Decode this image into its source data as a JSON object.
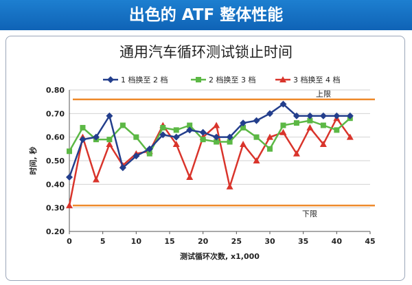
{
  "header": {
    "title": "出色的 ATF 整体性能"
  },
  "colors": {
    "banner": "#1467bf",
    "series1": "#233e8c",
    "series2": "#5cb845",
    "series3": "#d9342b",
    "limit": "#ee8a2b"
  },
  "chart_data": {
    "type": "line",
    "title": "通用汽车循环测试锁止时间",
    "xlabel": "测试循环次数, x1,000",
    "ylabel": "时间, 秒",
    "xlim": [
      0,
      45
    ],
    "ylim": [
      0.2,
      0.8
    ],
    "xticks": [
      "0",
      "5",
      "10",
      "15",
      "20",
      "25",
      "30",
      "35",
      "40",
      "45"
    ],
    "yticks": [
      "0.20",
      "0.30",
      "0.40",
      "0.50",
      "0.60",
      "0.70",
      "0.80"
    ],
    "grid": "horizontal",
    "legend_position": "top",
    "series": [
      {
        "name": "1 档换至 2 档",
        "marker": "diamond",
        "x": [
          0,
          2,
          4,
          6,
          8,
          10,
          12,
          14,
          16,
          18,
          20,
          22,
          24,
          26,
          28,
          30,
          32,
          34,
          36,
          38,
          40,
          42
        ],
        "y": [
          0.43,
          0.59,
          0.6,
          0.69,
          0.47,
          0.52,
          0.55,
          0.61,
          0.6,
          0.63,
          0.62,
          0.6,
          0.6,
          0.66,
          0.67,
          0.7,
          0.74,
          0.69,
          0.69,
          0.69,
          0.69,
          0.69
        ]
      },
      {
        "name": "2 档换至 3 档",
        "marker": "square",
        "x": [
          0,
          2,
          4,
          6,
          8,
          10,
          12,
          14,
          16,
          18,
          20,
          22,
          24,
          26,
          28,
          30,
          32,
          34,
          36,
          38,
          40,
          42
        ],
        "y": [
          0.54,
          0.64,
          0.59,
          0.59,
          0.65,
          0.6,
          0.53,
          0.64,
          0.63,
          0.65,
          0.59,
          0.58,
          0.58,
          0.64,
          0.6,
          0.55,
          0.65,
          0.66,
          0.67,
          0.65,
          0.63,
          0.68
        ]
      },
      {
        "name": "3 档换至 4 档",
        "marker": "triangle",
        "x": [
          0,
          2,
          4,
          6,
          8,
          10,
          12,
          14,
          16,
          18,
          20,
          22,
          24,
          26,
          28,
          30,
          32,
          34,
          36,
          38,
          40,
          42
        ],
        "y": [
          0.31,
          0.6,
          0.42,
          0.57,
          0.48,
          0.53,
          0.54,
          0.65,
          0.57,
          0.43,
          0.6,
          0.65,
          0.39,
          0.57,
          0.5,
          0.6,
          0.62,
          0.53,
          0.64,
          0.57,
          0.68,
          0.6
        ]
      }
    ],
    "limits": [
      {
        "label": "上限",
        "y": 0.76
      },
      {
        "label": "下限",
        "y": 0.31
      }
    ]
  }
}
